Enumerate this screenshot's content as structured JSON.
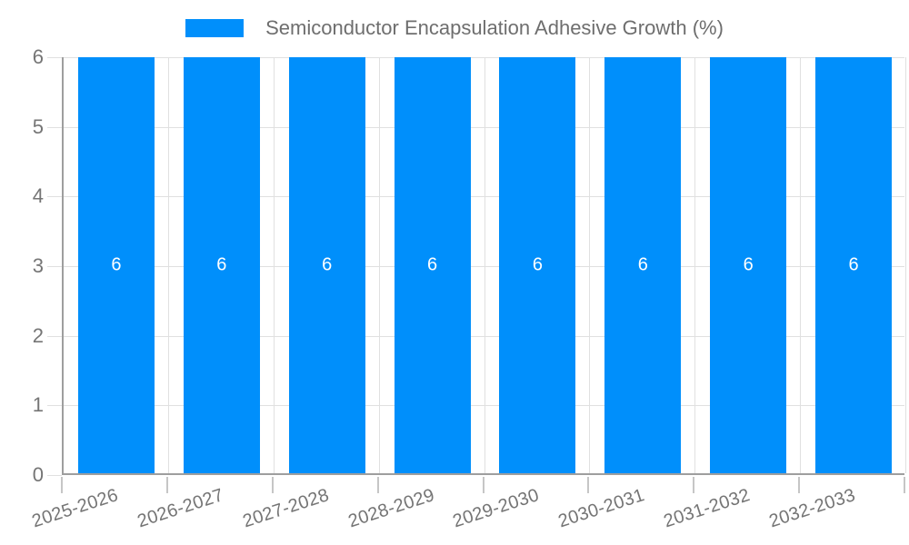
{
  "chart_data": {
    "type": "bar",
    "title": "Semiconductor Encapsulation Adhesive Growth (%)",
    "categories": [
      "2025-2026",
      "2026-2027",
      "2027-2028",
      "2028-2029",
      "2029-2030",
      "2030-2031",
      "2031-2032",
      "2032-2033"
    ],
    "values": [
      6,
      6,
      6,
      6,
      6,
      6,
      6,
      6
    ],
    "bar_value_labels": [
      "6",
      "6",
      "6",
      "6",
      "6",
      "6",
      "6",
      "6"
    ],
    "xlabel": "",
    "ylabel": "",
    "ylim": [
      0,
      6
    ],
    "yticks": [
      0,
      1,
      2,
      3,
      4,
      5,
      6
    ],
    "grid": true,
    "legend_position": "top",
    "x_label_rotation_deg": -18,
    "colors": {
      "bar": "#008FFB",
      "bar_label": "#FFFFFF",
      "axis_line": "#9E9E9E",
      "gridline": "#E0E0E0",
      "tick": "#C6C6C6",
      "axis_text": "#757575",
      "legend_text": "#6E6E6E",
      "background": "#FFFFFF"
    }
  }
}
